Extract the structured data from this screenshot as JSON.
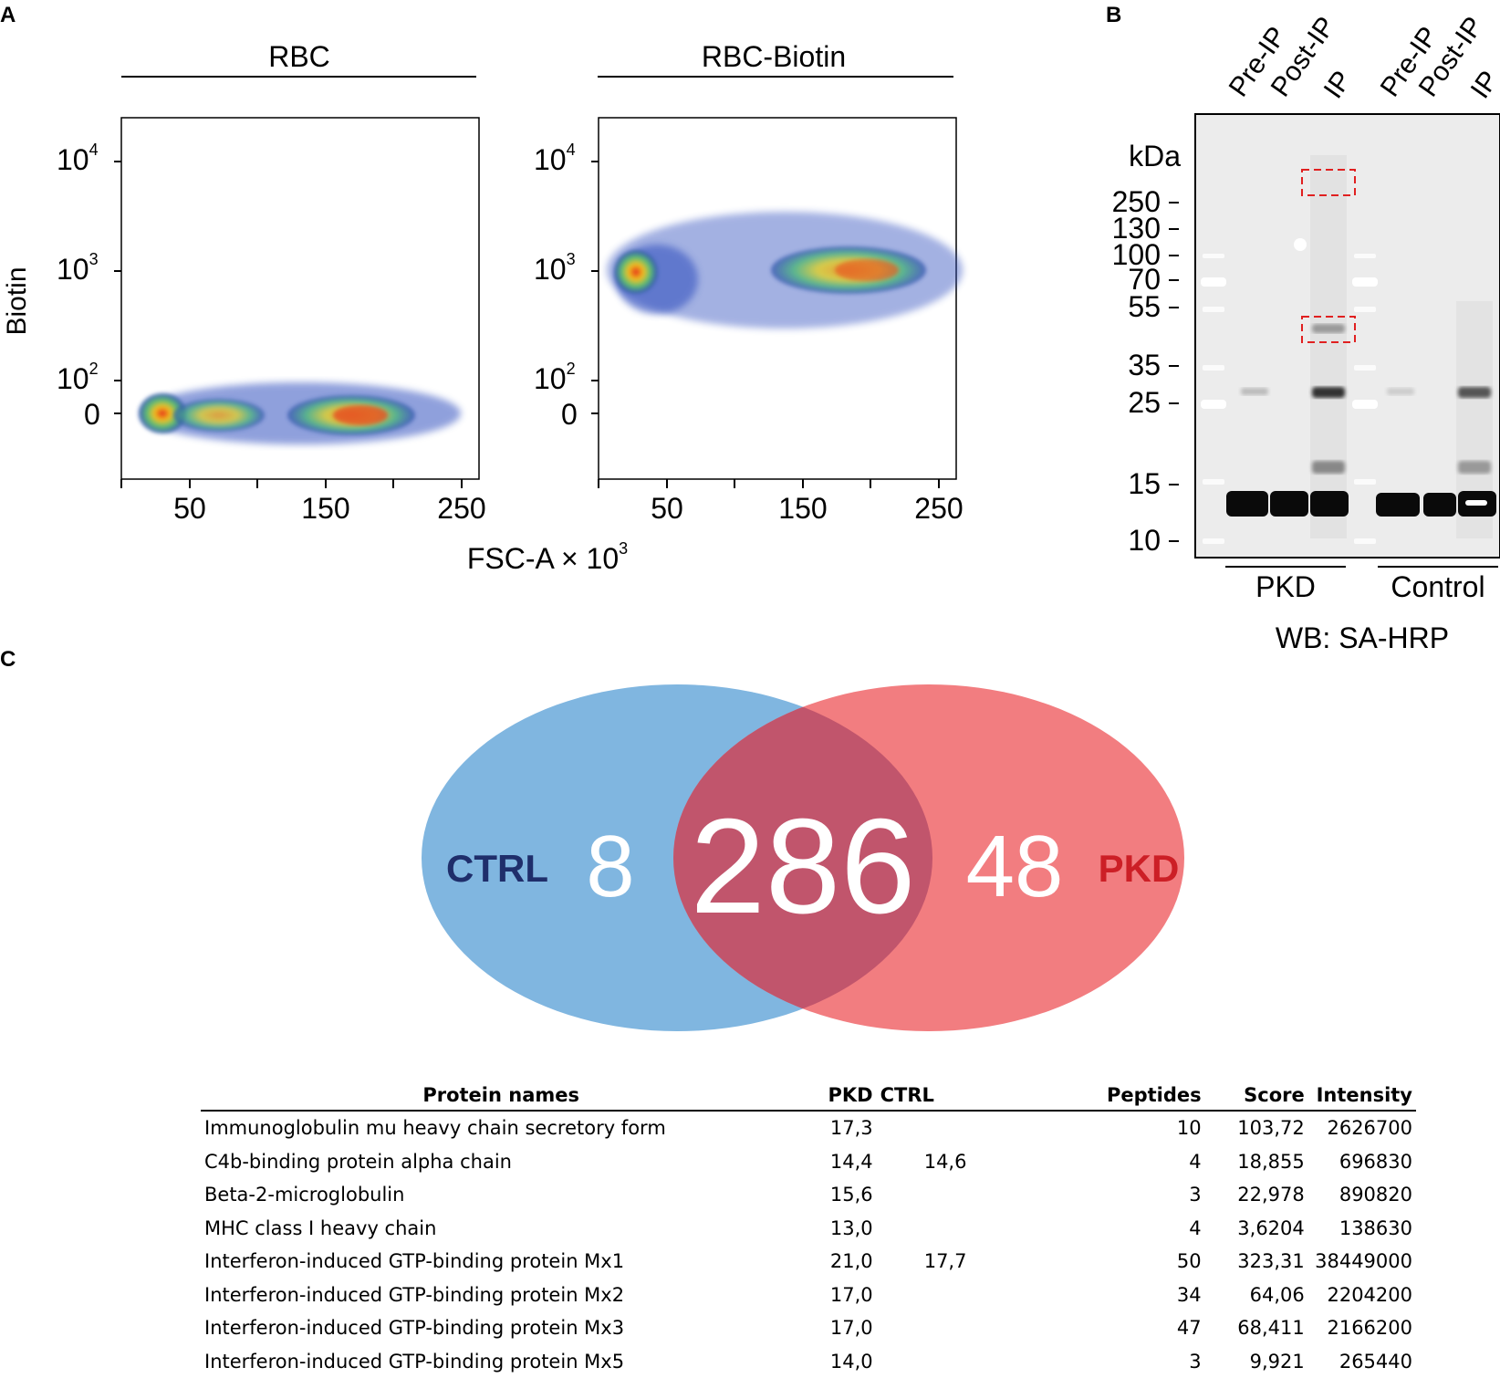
{
  "panels": {
    "a": "A",
    "b": "B",
    "c": "C"
  },
  "flow": {
    "groups": [
      "RBC",
      "RBC-Biotin"
    ],
    "ylabel": "Biotin",
    "xlabel_main": "FSC-A × 10",
    "xlabel_exp": "3",
    "y_ticks": [
      {
        "base": "10",
        "exp": "4"
      },
      {
        "base": "10",
        "exp": "3"
      },
      {
        "base": "10",
        "exp": "2"
      },
      {
        "base": "0",
        "exp": ""
      }
    ],
    "x_ticks": [
      "50",
      "150",
      "250"
    ]
  },
  "blot": {
    "lanes": [
      "Pre-IP",
      "Post-IP",
      "IP",
      "Pre-IP",
      "Post-IP",
      "IP"
    ],
    "unit": "kDa",
    "markers": [
      "250",
      "130",
      "100",
      "70",
      "55",
      "35",
      "25",
      "15",
      "10"
    ],
    "groups": [
      "PKD",
      "Control"
    ],
    "caption": "WB: SA-HRP"
  },
  "venn": {
    "left_label": "CTRL",
    "right_label": "PKD",
    "left_only": "8",
    "overlap": "286",
    "right_only": "48",
    "colors": {
      "left": "#80b6e0",
      "right": "#f27d80",
      "overlap": "#c1556c",
      "left_text": "#1f2e6b",
      "right_text": "#cc1f26"
    }
  },
  "table": {
    "headers": [
      "Protein names",
      "PKD",
      "CTRL",
      "Peptides",
      "Score",
      "Intensity"
    ],
    "rows": [
      [
        "Immunoglobulin mu heavy chain secretory form",
        "17,3",
        "",
        "10",
        "103,72",
        "2626700"
      ],
      [
        "C4b-binding protein alpha chain",
        "14,4",
        "14,6",
        "4",
        "18,855",
        "696830"
      ],
      [
        "Beta-2-microglobulin",
        "15,6",
        "",
        "3",
        "22,978",
        "890820"
      ],
      [
        "MHC class I heavy chain",
        "13,0",
        "",
        "4",
        "3,6204",
        "138630"
      ],
      [
        "Interferon-induced GTP-binding protein Mx1",
        "21,0",
        "17,7",
        "50",
        "323,31",
        "38449000"
      ],
      [
        "Interferon-induced GTP-binding protein Mx2",
        "17,0",
        "",
        "34",
        "64,06",
        "2204200"
      ],
      [
        "Interferon-induced GTP-binding protein Mx3",
        "17,0",
        "",
        "47",
        "68,411",
        "2166200"
      ],
      [
        "Interferon-induced GTP-binding protein Mx5",
        "14,0",
        "",
        "3",
        "9,921",
        "265440"
      ]
    ]
  }
}
